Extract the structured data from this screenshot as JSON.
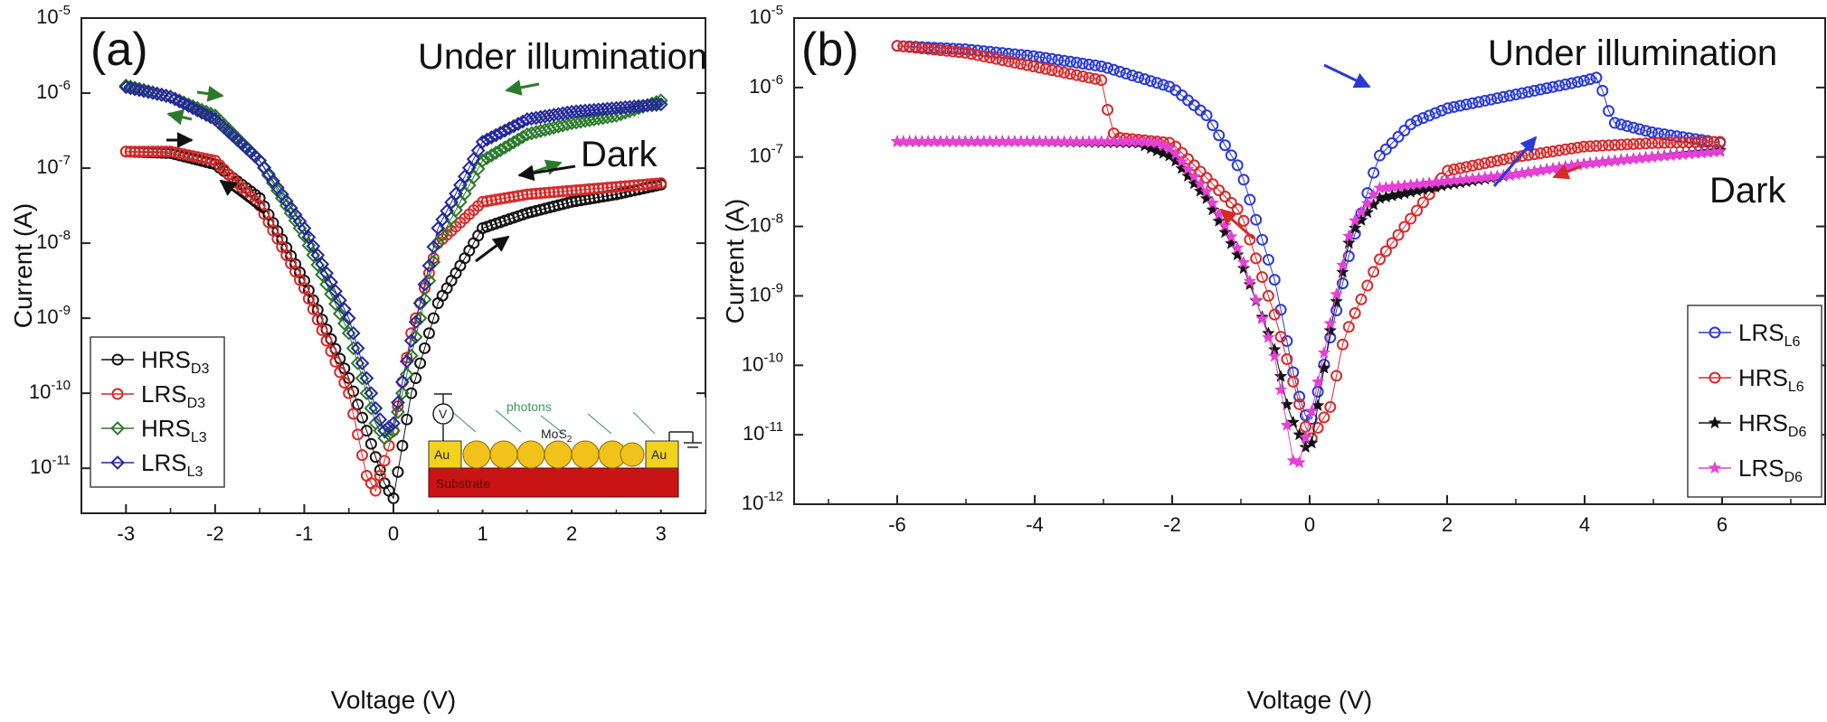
{
  "figure": {
    "panels": [
      {
        "id": "a",
        "panel_label": "(a)",
        "annotations": {
          "illumination": "Under illumination",
          "dark": "Dark"
        },
        "inset": {
          "left_electrode": "Au",
          "right_electrode": "Au",
          "layer": "MoS",
          "layer_sub": "2",
          "substrate": "Substrate",
          "photons": "photons",
          "meter": "V"
        }
      },
      {
        "id": "b",
        "panel_label": "(b)",
        "annotations": {
          "illumination": "Under illumination",
          "dark": "Dark"
        }
      }
    ]
  },
  "chart_data": [
    {
      "type": "line",
      "title": "",
      "xlabel": "Voltage (V)",
      "ylabel": "Current (A)",
      "xlim": [
        -3.5,
        3.5
      ],
      "ylim_log10": [
        -11.6,
        -5
      ],
      "y_scale": "log",
      "x_ticks": [
        "-3",
        "-2",
        "-1",
        "0",
        "1",
        "2",
        "3"
      ],
      "y_ticks": [
        {
          "base": "10",
          "exp": "-5"
        },
        {
          "base": "10",
          "exp": "-6"
        },
        {
          "base": "10",
          "exp": "-7"
        },
        {
          "base": "10",
          "exp": "-8"
        },
        {
          "base": "10",
          "exp": "-9"
        },
        {
          "base": "10",
          "exp": "-10"
        },
        {
          "base": "10",
          "exp": "-11"
        }
      ],
      "legend_position": "bottom-left",
      "series": [
        {
          "name": "HRS",
          "sub": "D3",
          "color": "#111111",
          "marker": "circle",
          "x": [
            -3,
            -2.5,
            -2,
            -1.5,
            -1,
            -0.5,
            -0.3,
            -0.1,
            0,
            0.2,
            0.5,
            1,
            1.5,
            2,
            2.5,
            3
          ],
          "y_log10": [
            -6.78,
            -6.8,
            -6.95,
            -7.4,
            -8.5,
            -9.8,
            -10.5,
            -11.2,
            -11.4,
            -10,
            -8.8,
            -7.8,
            -7.6,
            -7.45,
            -7.35,
            -7.22
          ]
        },
        {
          "name": "LRS",
          "sub": "D3",
          "color": "#d62a2a",
          "marker": "circle",
          "x": [
            -3,
            -2.5,
            -2,
            -1.5,
            -1,
            -0.5,
            -0.3,
            -0.2,
            -0.1,
            0,
            0.2,
            0.5,
            1,
            1.5,
            2,
            2.5,
            3
          ],
          "y_log10": [
            -6.78,
            -6.78,
            -6.9,
            -7.5,
            -8.6,
            -10,
            -11.1,
            -11.3,
            -10.9,
            -10.5,
            -9.2,
            -8,
            -7.45,
            -7.35,
            -7.3,
            -7.25,
            -7.2
          ]
        },
        {
          "name": "HRS",
          "sub": "L3",
          "color": "#2b7a2b",
          "marker": "diamond",
          "x": [
            -3,
            -2.5,
            -2,
            -1.5,
            -1,
            -0.5,
            -0.2,
            -0.1,
            0,
            0.2,
            0.5,
            1,
            1.5,
            2,
            2.5,
            3
          ],
          "y_log10": [
            -5.9,
            -6.05,
            -6.3,
            -6.9,
            -7.9,
            -9.2,
            -10.4,
            -10.6,
            -10.5,
            -9.5,
            -8,
            -6.9,
            -6.55,
            -6.4,
            -6.3,
            -6.1
          ]
        },
        {
          "name": "LRS",
          "sub": "L3",
          "color": "#24289a",
          "marker": "diamond",
          "x": [
            -3,
            -2.5,
            -2,
            -1.5,
            -1,
            -0.5,
            -0.2,
            -0.1,
            0,
            0.2,
            0.5,
            1,
            1.5,
            2,
            2.5,
            3
          ],
          "y_log10": [
            -5.92,
            -6.05,
            -6.35,
            -6.9,
            -7.8,
            -9,
            -10.2,
            -10.5,
            -10.4,
            -9.3,
            -7.8,
            -6.65,
            -6.35,
            -6.25,
            -6.2,
            -6.15
          ]
        }
      ]
    },
    {
      "type": "line",
      "title": "",
      "xlabel": "Voltage (V)",
      "ylabel": "Current (A)",
      "xlim": [
        -7.5,
        7.5
      ],
      "ylim_log10": [
        -12,
        -5
      ],
      "y_scale": "log",
      "x_ticks": [
        "-6",
        "-4",
        "-2",
        "0",
        "2",
        "4",
        "6"
      ],
      "y_ticks": [
        {
          "base": "10",
          "exp": "-5"
        },
        {
          "base": "10",
          "exp": "-6"
        },
        {
          "base": "10",
          "exp": "-7"
        },
        {
          "base": "10",
          "exp": "-8"
        },
        {
          "base": "10",
          "exp": "-9"
        },
        {
          "base": "10",
          "exp": "-10"
        },
        {
          "base": "10",
          "exp": "-11"
        },
        {
          "base": "10",
          "exp": "-12"
        }
      ],
      "legend_position": "bottom-right",
      "series": [
        {
          "name": "LRS",
          "sub": "L6",
          "color": "#2a3ad6",
          "marker": "circle",
          "x": [
            -6,
            -5,
            -4,
            -3,
            -2,
            -1.5,
            -1,
            -0.5,
            -0.2,
            0,
            0.3,
            0.6,
            1,
            1.5,
            2,
            3,
            4,
            4.2,
            4.4,
            5,
            6
          ],
          "y_log10": [
            -5.4,
            -5.45,
            -5.55,
            -5.7,
            -6.0,
            -6.4,
            -7.2,
            -8.8,
            -10.3,
            -10.9,
            -9.6,
            -8.3,
            -7.0,
            -6.5,
            -6.3,
            -6.1,
            -5.9,
            -5.85,
            -6.5,
            -6.65,
            -6.8
          ]
        },
        {
          "name": "HRS",
          "sub": "L6",
          "color": "#d62a2a",
          "marker": "circle",
          "x": [
            -6,
            -5,
            -4,
            -3,
            -2.9,
            -2.8,
            -2,
            -1,
            -0.5,
            0,
            0.3,
            0.5,
            1,
            2,
            3,
            4,
            5,
            6
          ],
          "y_log10": [
            -5.4,
            -5.5,
            -5.7,
            -5.9,
            -6.6,
            -6.72,
            -6.8,
            -7.8,
            -9.3,
            -11.1,
            -10.6,
            -9.6,
            -8.5,
            -7.2,
            -7.0,
            -6.85,
            -6.8,
            -6.78
          ]
        },
        {
          "name": "HRS",
          "sub": "D6",
          "color": "#111111",
          "marker": "star",
          "x": [
            -6,
            -4,
            -2.5,
            -2,
            -1.5,
            -1,
            -0.5,
            -0.3,
            0,
            0.3,
            0.6,
            1,
            2,
            3,
            4,
            5,
            6
          ],
          "y_log10": [
            -6.78,
            -6.78,
            -6.8,
            -7.0,
            -7.6,
            -8.5,
            -9.8,
            -10.7,
            -11.3,
            -9.5,
            -8.1,
            -7.6,
            -7.4,
            -7.25,
            -7.1,
            -7.0,
            -6.9
          ]
        },
        {
          "name": "LRS",
          "sub": "D6",
          "color": "#e640d6",
          "marker": "star",
          "x": [
            -6,
            -4,
            -2.5,
            -2.2,
            -2,
            -1.5,
            -1,
            -0.5,
            -0.2,
            0,
            0.3,
            0.6,
            1,
            2,
            3,
            4,
            5,
            6
          ],
          "y_log10": [
            -6.78,
            -6.78,
            -6.78,
            -6.8,
            -6.9,
            -7.5,
            -8.4,
            -9.9,
            -11.6,
            -10.8,
            -9.4,
            -8.0,
            -7.45,
            -7.35,
            -7.25,
            -7.1,
            -7.0,
            -6.92
          ]
        }
      ]
    }
  ]
}
